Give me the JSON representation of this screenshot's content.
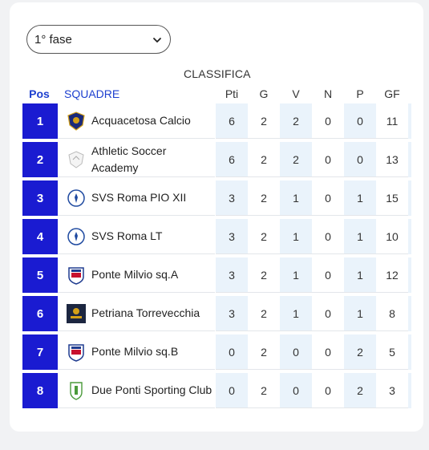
{
  "phase_select": {
    "value": "1° fase"
  },
  "table_title": "CLASSIFICA",
  "headers": {
    "pos": "Pos",
    "team": "SQUADRE",
    "pti": "Pti",
    "g": "G",
    "v": "V",
    "n": "N",
    "p": "P",
    "gf": "GF"
  },
  "rows": [
    {
      "pos": "1",
      "team": "Acquacetosa Calcio",
      "pti": "6",
      "g": "2",
      "v": "2",
      "n": "0",
      "p": "0",
      "gf": "11",
      "logo": "acquacetosa-crest-icon"
    },
    {
      "pos": "2",
      "team": "Athletic Soccer Academy",
      "pti": "6",
      "g": "2",
      "v": "2",
      "n": "0",
      "p": "0",
      "gf": "13",
      "logo": "athletic-crest-icon"
    },
    {
      "pos": "3",
      "team": "SVS Roma PIO XII",
      "pti": "3",
      "g": "2",
      "v": "1",
      "n": "0",
      "p": "1",
      "gf": "15",
      "logo": "svs-crest-icon"
    },
    {
      "pos": "4",
      "team": "SVS Roma LT",
      "pti": "3",
      "g": "2",
      "v": "1",
      "n": "0",
      "p": "1",
      "gf": "10",
      "logo": "svs-crest-icon"
    },
    {
      "pos": "5",
      "team": "Ponte Milvio sq.A",
      "pti": "3",
      "g": "2",
      "v": "1",
      "n": "0",
      "p": "1",
      "gf": "12",
      "logo": "ponte-milvio-crest-icon"
    },
    {
      "pos": "6",
      "team": "Petriana Torrevecchia",
      "pti": "3",
      "g": "2",
      "v": "1",
      "n": "0",
      "p": "1",
      "gf": "8",
      "logo": "petriana-crest-icon"
    },
    {
      "pos": "7",
      "team": "Ponte Milvio sq.B",
      "pti": "0",
      "g": "2",
      "v": "0",
      "n": "0",
      "p": "2",
      "gf": "5",
      "logo": "ponte-milvio-crest-icon"
    },
    {
      "pos": "8",
      "team": "Due Ponti Sporting Club",
      "pti": "0",
      "g": "2",
      "v": "0",
      "n": "0",
      "p": "2",
      "gf": "3",
      "logo": "due-ponti-crest-icon"
    }
  ],
  "colors": {
    "accent": "#1a1bd1",
    "highlight": "#eaf3fb"
  }
}
